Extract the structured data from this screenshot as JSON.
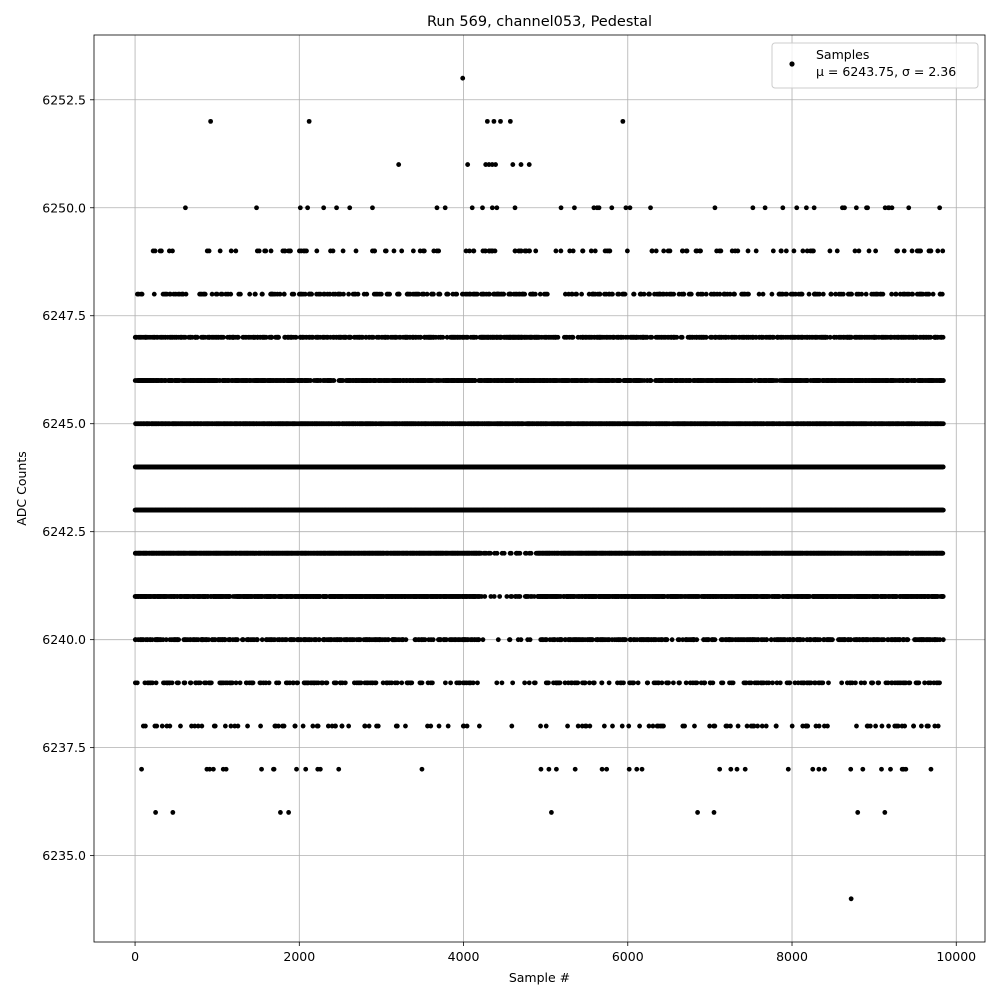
{
  "chart_data": {
    "type": "scatter",
    "title": "Run 569, channel053, Pedestal",
    "xlabel": "Sample #",
    "ylabel": "ADC Counts",
    "xlim": [
      -500,
      10350
    ],
    "ylim": [
      6233.0,
      6254.0
    ],
    "x_ticks": [
      0,
      2000,
      4000,
      6000,
      8000,
      10000
    ],
    "x_tick_labels": [
      "0",
      "2000",
      "4000",
      "6000",
      "8000",
      "10000"
    ],
    "y_ticks": [
      6235.0,
      6237.5,
      6240.0,
      6242.5,
      6245.0,
      6247.5,
      6250.0,
      6252.5
    ],
    "y_tick_labels": [
      "6235.0",
      "6237.5",
      "6240.0",
      "6242.5",
      "6245.0",
      "6247.5",
      "6250.0",
      "6252.5"
    ],
    "grid": true,
    "legend_position": "top-right",
    "legend": {
      "label": "Samples",
      "stats": "μ = 6243.75, σ = 2.36"
    },
    "series": [
      {
        "name": "Samples",
        "color": "#000000",
        "n_samples": 9840,
        "mean": 6243.75,
        "sigma": 2.36,
        "x_range": [
          0,
          9840
        ],
        "outliers": [
          {
            "x": 3990,
            "y": 6253
          },
          {
            "x": 920,
            "y": 6252
          },
          {
            "x": 2120,
            "y": 6252
          },
          {
            "x": 4290,
            "y": 6252
          },
          {
            "x": 4370,
            "y": 6252
          },
          {
            "x": 4450,
            "y": 6252
          },
          {
            "x": 4570,
            "y": 6252
          },
          {
            "x": 5940,
            "y": 6252
          },
          {
            "x": 3210,
            "y": 6251
          },
          {
            "x": 4050,
            "y": 6251
          },
          {
            "x": 4270,
            "y": 6251
          },
          {
            "x": 4310,
            "y": 6251
          },
          {
            "x": 4350,
            "y": 6251
          },
          {
            "x": 4390,
            "y": 6251
          },
          {
            "x": 4600,
            "y": 6251
          },
          {
            "x": 4700,
            "y": 6251
          },
          {
            "x": 4800,
            "y": 6251
          },
          {
            "x": 8720,
            "y": 6234
          },
          {
            "x": 250,
            "y": 6236
          },
          {
            "x": 460,
            "y": 6236
          },
          {
            "x": 1770,
            "y": 6236
          },
          {
            "x": 1870,
            "y": 6236
          },
          {
            "x": 5070,
            "y": 6236
          },
          {
            "x": 6850,
            "y": 6236
          },
          {
            "x": 7050,
            "y": 6236
          },
          {
            "x": 8800,
            "y": 6236
          },
          {
            "x": 9130,
            "y": 6236
          }
        ]
      }
    ]
  }
}
